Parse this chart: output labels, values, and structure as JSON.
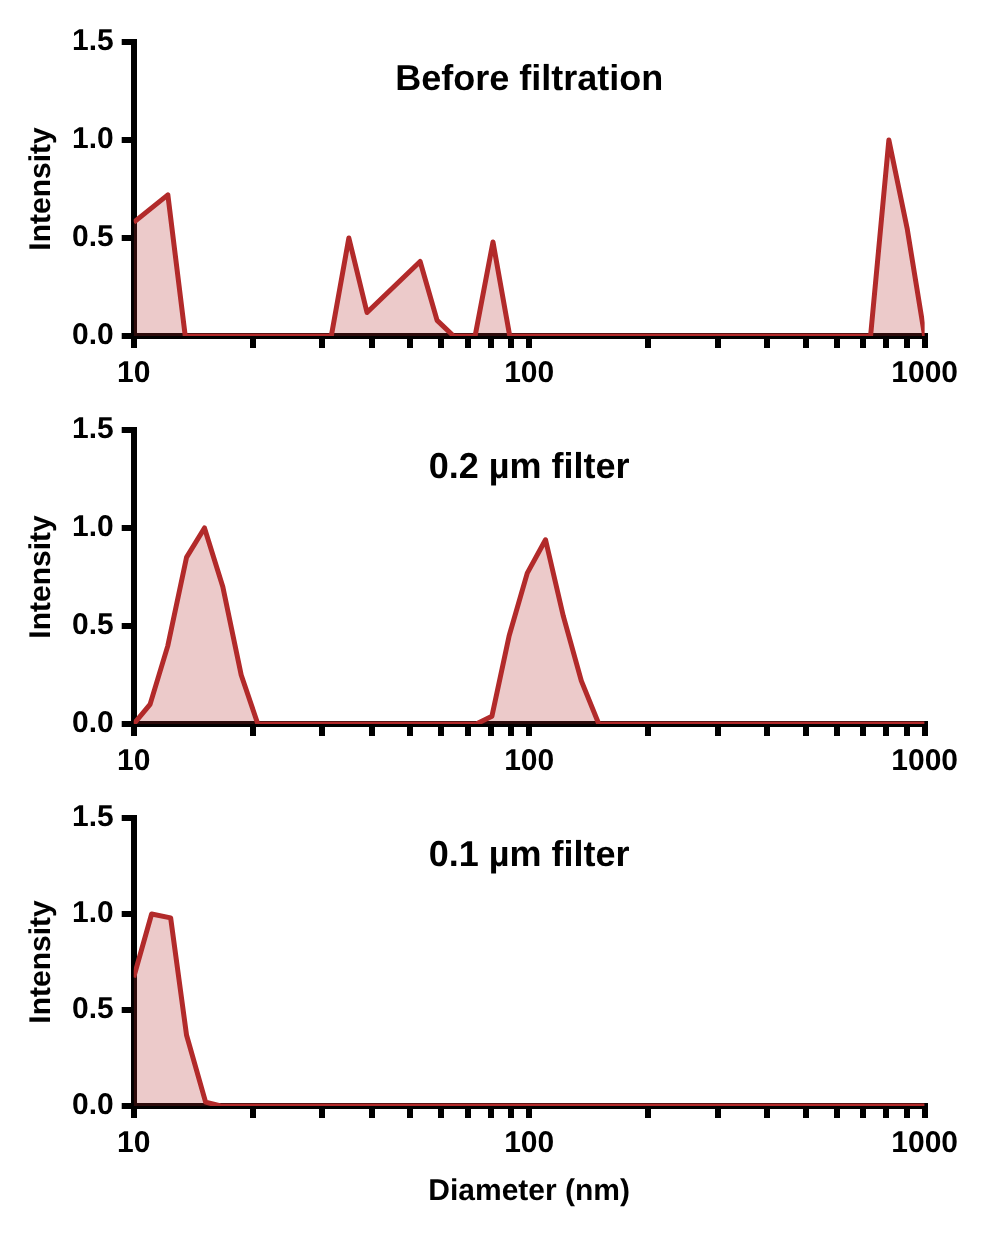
{
  "chart_data": [
    {
      "type": "area",
      "title": "Before filtration",
      "ylabel": "Intensity",
      "color": "#b22a2a",
      "log": "x",
      "grid": false,
      "x": [
        10,
        12.2,
        13.5,
        31.6,
        35,
        38.9,
        53,
        58.5,
        64.4,
        73,
        81,
        89.3,
        730,
        812,
        903,
        1000
      ],
      "values": [
        0.58,
        0.72,
        0,
        0,
        0.5,
        0.12,
        0.38,
        0.08,
        0,
        0,
        0.48,
        0,
        0,
        1.0,
        0.55,
        0
      ],
      "xlim": [
        10,
        1000
      ],
      "ylim": [
        0,
        1.5
      ],
      "xticks": [
        10,
        {
          "value": 20,
          "label": null
        },
        {
          "value": 30,
          "label": null
        },
        {
          "value": 40,
          "label": null
        },
        {
          "value": 50,
          "label": null
        },
        {
          "value": 60,
          "label": null
        },
        {
          "value": 70,
          "label": null
        },
        {
          "value": 80,
          "label": null
        },
        {
          "value": 90,
          "label": null
        },
        100,
        {
          "value": 200,
          "label": null
        },
        {
          "value": 300,
          "label": null
        },
        {
          "value": 400,
          "label": null
        },
        {
          "value": 500,
          "label": null
        },
        {
          "value": 600,
          "label": null
        },
        {
          "value": 700,
          "label": null
        },
        {
          "value": 800,
          "label": null
        },
        {
          "value": 900,
          "label": null
        },
        1000
      ],
      "yticks": [
        {
          "value": 0,
          "label": "0.0"
        },
        {
          "value": 0.5,
          "label": "0.5"
        },
        {
          "value": 1,
          "label": "1.0"
        },
        {
          "value": 1.5,
          "label": "1.5"
        }
      ]
    },
    {
      "type": "area",
      "title": "0.2 µm filter",
      "ylabel": "Intensity",
      "color": "#b22a2a",
      "log": "x",
      "grid": false,
      "x": [
        10,
        11,
        12.2,
        13.6,
        15.1,
        16.8,
        18.7,
        20.6,
        73.5,
        80.5,
        89,
        98.9,
        110,
        122,
        135.5,
        150,
        1000
      ],
      "values": [
        0,
        0.1,
        0.4,
        0.85,
        1.0,
        0.7,
        0.25,
        0,
        0,
        0.04,
        0.45,
        0.77,
        0.94,
        0.55,
        0.22,
        0,
        0
      ],
      "xlim": [
        10,
        1000
      ],
      "ylim": [
        0,
        1.5
      ],
      "xticks": [
        10,
        {
          "value": 20,
          "label": null
        },
        {
          "value": 30,
          "label": null
        },
        {
          "value": 40,
          "label": null
        },
        {
          "value": 50,
          "label": null
        },
        {
          "value": 60,
          "label": null
        },
        {
          "value": 70,
          "label": null
        },
        {
          "value": 80,
          "label": null
        },
        {
          "value": 90,
          "label": null
        },
        100,
        {
          "value": 200,
          "label": null
        },
        {
          "value": 300,
          "label": null
        },
        {
          "value": 400,
          "label": null
        },
        {
          "value": 500,
          "label": null
        },
        {
          "value": 600,
          "label": null
        },
        {
          "value": 700,
          "label": null
        },
        {
          "value": 800,
          "label": null
        },
        {
          "value": 900,
          "label": null
        },
        1000
      ],
      "yticks": [
        {
          "value": 0,
          "label": "0.0"
        },
        {
          "value": 0.5,
          "label": "0.5"
        },
        {
          "value": 1,
          "label": "1.0"
        },
        {
          "value": 1.5,
          "label": "1.5"
        }
      ]
    },
    {
      "type": "area",
      "title": "0.1 µm filter",
      "ylabel": "Intensity",
      "xlabel": "Diameter (nm)",
      "color": "#b22a2a",
      "log": "x",
      "grid": false,
      "x": [
        10,
        11.1,
        12.4,
        13.6,
        15.2,
        16.6,
        1000
      ],
      "values": [
        0.67,
        1.0,
        0.98,
        0.37,
        0.02,
        0,
        0
      ],
      "xlim": [
        10,
        1000
      ],
      "ylim": [
        0,
        1.5
      ],
      "xticks": [
        10,
        {
          "value": 20,
          "label": null
        },
        {
          "value": 30,
          "label": null
        },
        {
          "value": 40,
          "label": null
        },
        {
          "value": 50,
          "label": null
        },
        {
          "value": 60,
          "label": null
        },
        {
          "value": 70,
          "label": null
        },
        {
          "value": 80,
          "label": null
        },
        {
          "value": 90,
          "label": null
        },
        100,
        {
          "value": 200,
          "label": null
        },
        {
          "value": 300,
          "label": null
        },
        {
          "value": 400,
          "label": null
        },
        {
          "value": 500,
          "label": null
        },
        {
          "value": 600,
          "label": null
        },
        {
          "value": 700,
          "label": null
        },
        {
          "value": 800,
          "label": null
        },
        {
          "value": 900,
          "label": null
        },
        1000
      ],
      "yticks": [
        {
          "value": 0,
          "label": "0.0"
        },
        {
          "value": 0.5,
          "label": "0.5"
        },
        {
          "value": 1,
          "label": "1.0"
        },
        {
          "value": 1.5,
          "label": "1.5"
        }
      ]
    }
  ]
}
